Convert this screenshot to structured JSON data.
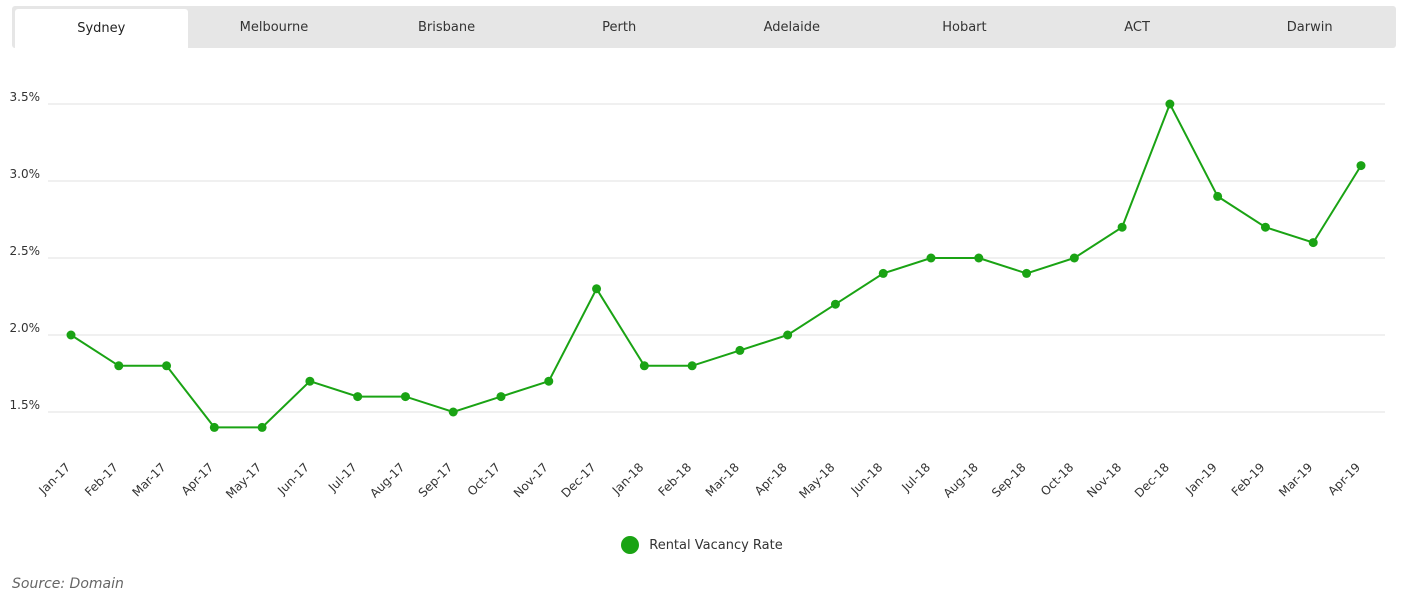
{
  "tabs": [
    {
      "label": "Sydney",
      "active": true
    },
    {
      "label": "Melbourne",
      "active": false
    },
    {
      "label": "Brisbane",
      "active": false
    },
    {
      "label": "Perth",
      "active": false
    },
    {
      "label": "Adelaide",
      "active": false
    },
    {
      "label": "Hobart",
      "active": false
    },
    {
      "label": "ACT",
      "active": false
    },
    {
      "label": "Darwin",
      "active": false
    }
  ],
  "source": "Source: Domain",
  "colors": {
    "series": "#1aa314",
    "grid": "#e0e0e0"
  },
  "chart_data": {
    "type": "line",
    "title": "",
    "xlabel": "",
    "ylabel": "",
    "ylim": [
      1.25,
      3.75
    ],
    "yticks": [
      "1.5%",
      "2.0%",
      "2.5%",
      "3.0%",
      "3.5%"
    ],
    "ytick_values": [
      1.5,
      2.0,
      2.5,
      3.0,
      3.5
    ],
    "grid": true,
    "legend_position": "bottom-center",
    "categories": [
      "Jan-17",
      "Feb-17",
      "Mar-17",
      "Apr-17",
      "May-17",
      "Jun-17",
      "Jul-17",
      "Aug-17",
      "Sep-17",
      "Oct-17",
      "Nov-17",
      "Dec-17",
      "Jan-18",
      "Feb-18",
      "Mar-18",
      "Apr-18",
      "May-18",
      "Jun-18",
      "Jul-18",
      "Aug-18",
      "Sep-18",
      "Oct-18",
      "Nov-18",
      "Dec-18",
      "Jan-19",
      "Feb-19",
      "Mar-19",
      "Apr-19"
    ],
    "series": [
      {
        "name": "Rental Vacancy Rate",
        "values": [
          2.0,
          1.8,
          1.8,
          1.4,
          1.4,
          1.7,
          1.6,
          1.6,
          1.5,
          1.6,
          1.7,
          2.3,
          1.8,
          1.8,
          1.9,
          2.0,
          2.2,
          2.4,
          2.5,
          2.5,
          2.4,
          2.5,
          2.7,
          3.5,
          2.9,
          2.7,
          2.6,
          3.1
        ]
      }
    ]
  }
}
